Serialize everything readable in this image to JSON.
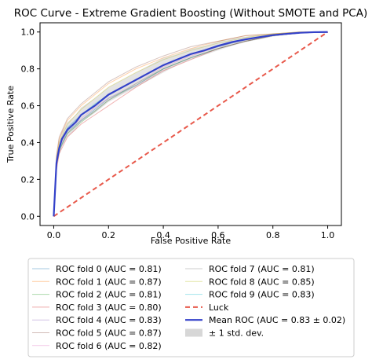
{
  "chart_data": {
    "type": "line",
    "title": "ROC Curve - Extreme Gradient Boosting (Without SMOTE and PCA)",
    "xlabel": "False Positive Rate",
    "ylabel": "True Positive Rate",
    "xlim": [
      -0.05,
      1.05
    ],
    "ylim": [
      -0.05,
      1.05
    ],
    "xticks": [
      "0.0",
      "0.2",
      "0.4",
      "0.6",
      "0.8",
      "1.0"
    ],
    "yticks": [
      "0.0",
      "0.2",
      "0.4",
      "0.6",
      "0.8",
      "1.0"
    ],
    "grid": false,
    "legend_placement": "below",
    "series": [
      {
        "name": "ROC fold 0 (AUC = 0.81)",
        "color": "#1f77b4",
        "style": "fold",
        "x": [
          0,
          0.01,
          0.02,
          0.05,
          0.1,
          0.15,
          0.2,
          0.3,
          0.4,
          0.5,
          0.6,
          0.7,
          0.8,
          0.9,
          1.0
        ],
        "y": [
          0,
          0.27,
          0.36,
          0.46,
          0.52,
          0.58,
          0.64,
          0.71,
          0.8,
          0.86,
          0.91,
          0.95,
          0.98,
          0.995,
          1.0
        ]
      },
      {
        "name": "ROC fold 1 (AUC = 0.87)",
        "color": "#ff7f0e",
        "style": "fold",
        "x": [
          0,
          0.01,
          0.02,
          0.05,
          0.1,
          0.15,
          0.2,
          0.3,
          0.4,
          0.5,
          0.6,
          0.7,
          0.8,
          0.9,
          1.0
        ],
        "y": [
          0,
          0.32,
          0.42,
          0.52,
          0.6,
          0.66,
          0.72,
          0.8,
          0.86,
          0.91,
          0.95,
          0.98,
          0.99,
          1.0,
          1.0
        ]
      },
      {
        "name": "ROC fold 2 (AUC = 0.81)",
        "color": "#2ca02c",
        "style": "fold",
        "x": [
          0,
          0.01,
          0.02,
          0.05,
          0.1,
          0.15,
          0.2,
          0.3,
          0.4,
          0.5,
          0.6,
          0.7,
          0.8,
          0.9,
          1.0
        ],
        "y": [
          0,
          0.28,
          0.36,
          0.45,
          0.51,
          0.57,
          0.63,
          0.72,
          0.8,
          0.86,
          0.91,
          0.95,
          0.98,
          0.995,
          1.0
        ]
      },
      {
        "name": "ROC fold 3 (AUC = 0.80)",
        "color": "#d62728",
        "style": "fold",
        "x": [
          0,
          0.01,
          0.02,
          0.05,
          0.1,
          0.15,
          0.2,
          0.3,
          0.4,
          0.5,
          0.6,
          0.7,
          0.8,
          0.9,
          1.0
        ],
        "y": [
          0,
          0.25,
          0.34,
          0.43,
          0.5,
          0.55,
          0.6,
          0.7,
          0.79,
          0.85,
          0.91,
          0.95,
          0.98,
          0.995,
          1.0
        ]
      },
      {
        "name": "ROC fold 4 (AUC = 0.83)",
        "color": "#9467bd",
        "style": "fold",
        "x": [
          0,
          0.01,
          0.02,
          0.05,
          0.1,
          0.15,
          0.2,
          0.3,
          0.4,
          0.5,
          0.6,
          0.7,
          0.8,
          0.9,
          1.0
        ],
        "y": [
          0,
          0.29,
          0.38,
          0.48,
          0.55,
          0.6,
          0.66,
          0.74,
          0.82,
          0.88,
          0.92,
          0.96,
          0.98,
          0.995,
          1.0
        ]
      },
      {
        "name": "ROC fold 5 (AUC = 0.87)",
        "color": "#8c564b",
        "style": "fold",
        "x": [
          0,
          0.01,
          0.02,
          0.05,
          0.1,
          0.15,
          0.2,
          0.3,
          0.4,
          0.5,
          0.6,
          0.7,
          0.8,
          0.9,
          1.0
        ],
        "y": [
          0,
          0.33,
          0.43,
          0.53,
          0.61,
          0.67,
          0.73,
          0.81,
          0.87,
          0.92,
          0.95,
          0.98,
          0.99,
          1.0,
          1.0
        ]
      },
      {
        "name": "ROC fold 6 (AUC = 0.82)",
        "color": "#e377c2",
        "style": "fold",
        "x": [
          0,
          0.01,
          0.02,
          0.05,
          0.1,
          0.15,
          0.2,
          0.3,
          0.4,
          0.5,
          0.6,
          0.7,
          0.8,
          0.9,
          1.0
        ],
        "y": [
          0,
          0.28,
          0.37,
          0.47,
          0.53,
          0.59,
          0.64,
          0.72,
          0.81,
          0.87,
          0.92,
          0.96,
          0.98,
          0.995,
          1.0
        ]
      },
      {
        "name": "ROC fold 7 (AUC = 0.81)",
        "color": "#7f7f7f",
        "style": "fold",
        "x": [
          0,
          0.01,
          0.02,
          0.05,
          0.1,
          0.15,
          0.2,
          0.3,
          0.4,
          0.5,
          0.6,
          0.7,
          0.8,
          0.9,
          1.0
        ],
        "y": [
          0,
          0.27,
          0.35,
          0.45,
          0.52,
          0.57,
          0.63,
          0.71,
          0.8,
          0.86,
          0.91,
          0.95,
          0.98,
          0.995,
          1.0
        ]
      },
      {
        "name": "ROC fold 8 (AUC = 0.85)",
        "color": "#bcbd22",
        "style": "fold",
        "x": [
          0,
          0.01,
          0.02,
          0.05,
          0.1,
          0.15,
          0.2,
          0.3,
          0.4,
          0.5,
          0.6,
          0.7,
          0.8,
          0.9,
          1.0
        ],
        "y": [
          0,
          0.31,
          0.4,
          0.5,
          0.58,
          0.64,
          0.7,
          0.78,
          0.85,
          0.9,
          0.94,
          0.97,
          0.99,
          1.0,
          1.0
        ]
      },
      {
        "name": "ROC fold 9 (AUC = 0.83)",
        "color": "#17becf",
        "style": "fold",
        "x": [
          0,
          0.01,
          0.02,
          0.05,
          0.1,
          0.15,
          0.2,
          0.3,
          0.4,
          0.5,
          0.6,
          0.7,
          0.8,
          0.9,
          1.0
        ],
        "y": [
          0,
          0.29,
          0.38,
          0.48,
          0.55,
          0.61,
          0.66,
          0.74,
          0.82,
          0.88,
          0.92,
          0.96,
          0.98,
          0.995,
          1.0
        ]
      },
      {
        "name": "Luck",
        "color": "#e8594b",
        "style": "dashed",
        "x": [
          0,
          1
        ],
        "y": [
          0,
          1
        ]
      },
      {
        "name": "Mean ROC (AUC = 0.83 ± 0.02)",
        "color": "#3341c9",
        "style": "mean",
        "x": [
          0,
          0.01,
          0.02,
          0.03,
          0.05,
          0.08,
          0.1,
          0.15,
          0.2,
          0.25,
          0.3,
          0.35,
          0.4,
          0.45,
          0.5,
          0.55,
          0.6,
          0.65,
          0.7,
          0.75,
          0.8,
          0.85,
          0.9,
          0.95,
          1.0
        ],
        "y": [
          0,
          0.29,
          0.37,
          0.42,
          0.47,
          0.51,
          0.55,
          0.6,
          0.66,
          0.7,
          0.74,
          0.78,
          0.82,
          0.85,
          0.88,
          0.9,
          0.925,
          0.945,
          0.96,
          0.972,
          0.983,
          0.99,
          0.996,
          0.999,
          1.0
        ]
      },
      {
        "name": "± 1 std. dev.",
        "color": "#b0b0b0",
        "style": "band",
        "x": [
          0,
          0.01,
          0.02,
          0.03,
          0.05,
          0.08,
          0.1,
          0.15,
          0.2,
          0.25,
          0.3,
          0.35,
          0.4,
          0.45,
          0.5,
          0.55,
          0.6,
          0.65,
          0.7,
          0.75,
          0.8,
          0.85,
          0.9,
          0.95,
          1.0
        ],
        "lower": [
          0,
          0.26,
          0.33,
          0.38,
          0.43,
          0.47,
          0.51,
          0.56,
          0.62,
          0.66,
          0.7,
          0.74,
          0.78,
          0.82,
          0.85,
          0.875,
          0.9,
          0.925,
          0.945,
          0.96,
          0.975,
          0.985,
          0.993,
          0.998,
          1.0
        ],
        "upper": [
          0,
          0.32,
          0.41,
          0.46,
          0.51,
          0.55,
          0.59,
          0.64,
          0.7,
          0.74,
          0.78,
          0.82,
          0.86,
          0.88,
          0.91,
          0.925,
          0.95,
          0.965,
          0.975,
          0.984,
          0.991,
          0.995,
          0.999,
          1.0,
          1.0
        ]
      }
    ]
  }
}
